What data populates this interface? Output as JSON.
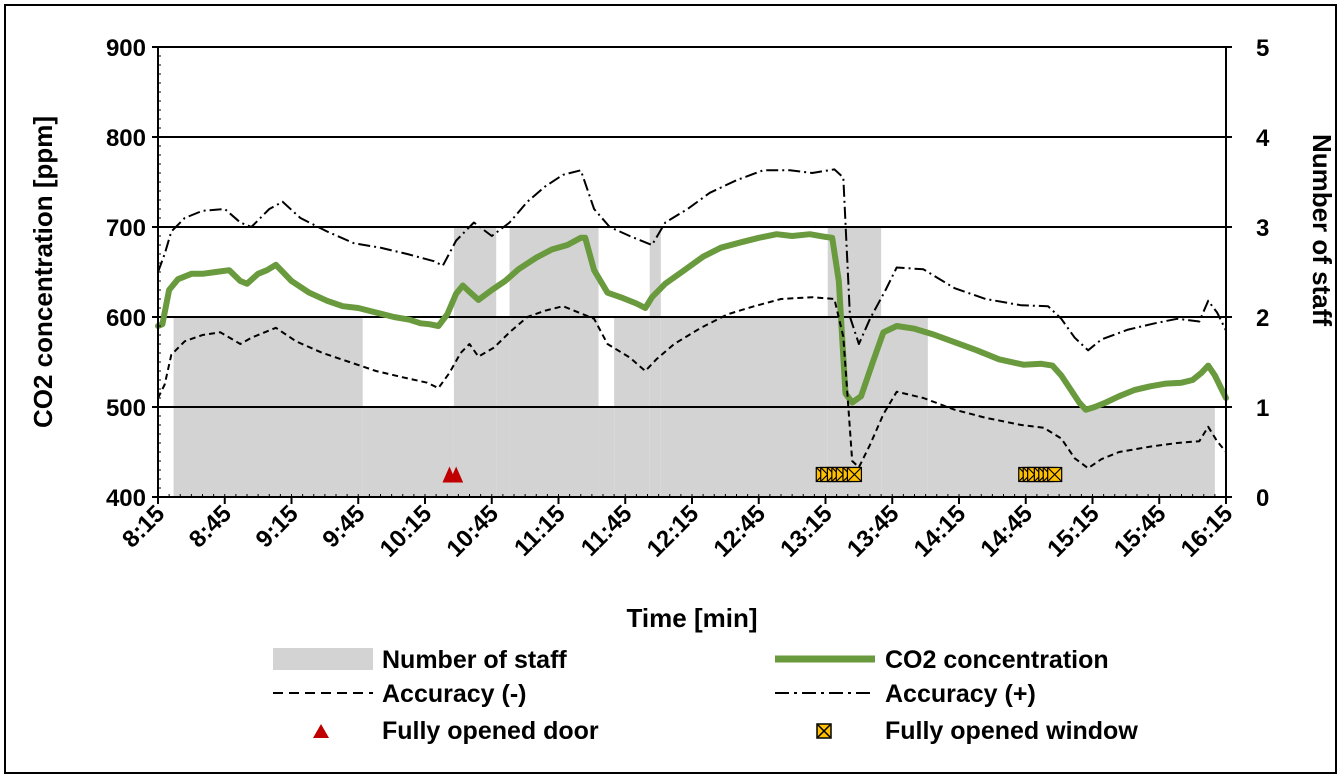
{
  "chart_data": {
    "type": "line",
    "title": "",
    "xlabel": "Time [min]",
    "ylabel_left": "CO2 concentration [ppm]",
    "ylabel_right": "Number of staff",
    "x_ticks": [
      "8:15",
      "8:45",
      "9:15",
      "9:45",
      "10:15",
      "10:45",
      "11:15",
      "11:45",
      "12:15",
      "12:45",
      "13:15",
      "13:45",
      "14:15",
      "14:45",
      "15:15",
      "15:45",
      "16:15"
    ],
    "x_range_min": [
      0,
      480
    ],
    "ylim_left": [
      400,
      900
    ],
    "ylim_right": [
      0,
      5
    ],
    "y_ticks_left": [
      "400",
      "500",
      "600",
      "700",
      "800",
      "900"
    ],
    "y_ticks_right": [
      "0",
      "1",
      "2",
      "3",
      "4",
      "5"
    ],
    "grid": "horizontal",
    "series": [
      {
        "name": "Number of staff",
        "kind": "step-area",
        "axis": "right",
        "color": "#d3d3d3",
        "steps": [
          [
            7,
            2
          ],
          [
            92,
            1
          ],
          [
            133,
            3
          ],
          [
            152,
            2
          ],
          [
            158,
            3
          ],
          [
            198,
            1
          ],
          [
            205,
            2
          ],
          [
            221,
            3
          ],
          [
            226,
            2
          ],
          [
            301,
            3
          ],
          [
            325,
            2
          ],
          [
            346,
            1
          ],
          [
            475,
            1
          ]
        ]
      },
      {
        "name": "CO2 concentration",
        "kind": "line",
        "axis": "left",
        "color": "#6a9a3e",
        "points": [
          [
            0,
            590
          ],
          [
            2,
            592
          ],
          [
            5,
            630
          ],
          [
            9,
            642
          ],
          [
            15,
            648
          ],
          [
            20,
            648
          ],
          [
            26,
            650
          ],
          [
            32,
            652
          ],
          [
            37,
            640
          ],
          [
            40,
            637
          ],
          [
            45,
            648
          ],
          [
            49,
            652
          ],
          [
            53,
            658
          ],
          [
            60,
            640
          ],
          [
            68,
            627
          ],
          [
            76,
            618
          ],
          [
            83,
            612
          ],
          [
            90,
            610
          ],
          [
            98,
            605
          ],
          [
            106,
            600
          ],
          [
            113,
            597
          ],
          [
            118,
            593
          ],
          [
            122,
            592
          ],
          [
            126,
            590
          ],
          [
            130,
            603
          ],
          [
            134,
            626
          ],
          [
            137,
            635
          ],
          [
            140,
            628
          ],
          [
            144,
            619
          ],
          [
            150,
            630
          ],
          [
            156,
            640
          ],
          [
            162,
            653
          ],
          [
            170,
            666
          ],
          [
            177,
            675
          ],
          [
            184,
            680
          ],
          [
            190,
            688
          ],
          [
            192,
            688
          ],
          [
            196,
            652
          ],
          [
            202,
            627
          ],
          [
            209,
            621
          ],
          [
            215,
            615
          ],
          [
            219,
            610
          ],
          [
            222,
            622
          ],
          [
            228,
            637
          ],
          [
            236,
            651
          ],
          [
            245,
            667
          ],
          [
            253,
            677
          ],
          [
            262,
            683
          ],
          [
            270,
            688
          ],
          [
            278,
            692
          ],
          [
            285,
            690
          ],
          [
            293,
            692
          ],
          [
            300,
            689
          ],
          [
            303,
            688
          ],
          [
            306,
            640
          ],
          [
            309,
            515
          ],
          [
            312,
            505
          ],
          [
            316,
            512
          ],
          [
            321,
            548
          ],
          [
            326,
            583
          ],
          [
            332,
            590
          ],
          [
            340,
            587
          ],
          [
            348,
            581
          ],
          [
            358,
            572
          ],
          [
            368,
            563
          ],
          [
            378,
            553
          ],
          [
            389,
            547
          ],
          [
            397,
            548
          ],
          [
            402,
            546
          ],
          [
            406,
            535
          ],
          [
            410,
            520
          ],
          [
            414,
            505
          ],
          [
            417,
            497
          ],
          [
            421,
            500
          ],
          [
            426,
            505
          ],
          [
            432,
            512
          ],
          [
            439,
            519
          ],
          [
            446,
            523
          ],
          [
            453,
            526
          ],
          [
            460,
            527
          ],
          [
            465,
            530
          ],
          [
            469,
            538
          ],
          [
            472,
            546
          ],
          [
            475,
            535
          ],
          [
            478,
            520
          ],
          [
            480,
            510
          ]
        ]
      },
      {
        "name": "Accuracy (-)",
        "kind": "line",
        "axis": "left",
        "color": "#000000",
        "dash": "dashed",
        "points": [
          [
            0,
            510
          ],
          [
            3,
            525
          ],
          [
            6,
            558
          ],
          [
            12,
            573
          ],
          [
            20,
            580
          ],
          [
            28,
            583
          ],
          [
            37,
            570
          ],
          [
            42,
            577
          ],
          [
            53,
            588
          ],
          [
            62,
            573
          ],
          [
            74,
            560
          ],
          [
            86,
            550
          ],
          [
            98,
            540
          ],
          [
            110,
            533
          ],
          [
            121,
            527
          ],
          [
            126,
            521
          ],
          [
            131,
            538
          ],
          [
            136,
            560
          ],
          [
            140,
            570
          ],
          [
            144,
            556
          ],
          [
            151,
            566
          ],
          [
            158,
            583
          ],
          [
            166,
            600
          ],
          [
            174,
            607
          ],
          [
            182,
            612
          ],
          [
            196,
            598
          ],
          [
            202,
            570
          ],
          [
            212,
            555
          ],
          [
            219,
            540
          ],
          [
            224,
            553
          ],
          [
            232,
            570
          ],
          [
            244,
            588
          ],
          [
            256,
            603
          ],
          [
            268,
            612
          ],
          [
            280,
            620
          ],
          [
            294,
            622
          ],
          [
            304,
            620
          ],
          [
            308,
            578
          ],
          [
            312,
            440
          ],
          [
            315,
            433
          ],
          [
            320,
            458
          ],
          [
            326,
            492
          ],
          [
            332,
            517
          ],
          [
            344,
            510
          ],
          [
            358,
            497
          ],
          [
            372,
            488
          ],
          [
            388,
            480
          ],
          [
            398,
            477
          ],
          [
            406,
            465
          ],
          [
            412,
            443
          ],
          [
            418,
            432
          ],
          [
            424,
            442
          ],
          [
            432,
            450
          ],
          [
            446,
            456
          ],
          [
            458,
            460
          ],
          [
            468,
            462
          ],
          [
            472,
            478
          ],
          [
            476,
            462
          ],
          [
            480,
            450
          ]
        ]
      },
      {
        "name": "Accuracy (+)",
        "kind": "line",
        "axis": "left",
        "color": "#000000",
        "dash": "dash-dot",
        "points": [
          [
            0,
            650
          ],
          [
            3,
            670
          ],
          [
            6,
            695
          ],
          [
            12,
            710
          ],
          [
            20,
            718
          ],
          [
            30,
            720
          ],
          [
            37,
            705
          ],
          [
            42,
            700
          ],
          [
            50,
            720
          ],
          [
            56,
            728
          ],
          [
            64,
            710
          ],
          [
            76,
            695
          ],
          [
            88,
            682
          ],
          [
            100,
            677
          ],
          [
            112,
            670
          ],
          [
            124,
            662
          ],
          [
            128,
            657
          ],
          [
            134,
            685
          ],
          [
            142,
            705
          ],
          [
            150,
            690
          ],
          [
            158,
            705
          ],
          [
            166,
            728
          ],
          [
            174,
            745
          ],
          [
            182,
            758
          ],
          [
            190,
            763
          ],
          [
            196,
            720
          ],
          [
            203,
            700
          ],
          [
            212,
            690
          ],
          [
            222,
            680
          ],
          [
            228,
            705
          ],
          [
            238,
            720
          ],
          [
            248,
            738
          ],
          [
            260,
            752
          ],
          [
            272,
            763
          ],
          [
            284,
            763
          ],
          [
            294,
            760
          ],
          [
            304,
            764
          ],
          [
            308,
            755
          ],
          [
            311,
            600
          ],
          [
            315,
            570
          ],
          [
            320,
            598
          ],
          [
            327,
            630
          ],
          [
            332,
            655
          ],
          [
            344,
            653
          ],
          [
            358,
            632
          ],
          [
            372,
            620
          ],
          [
            388,
            613
          ],
          [
            400,
            612
          ],
          [
            406,
            598
          ],
          [
            412,
            577
          ],
          [
            418,
            563
          ],
          [
            424,
            575
          ],
          [
            436,
            586
          ],
          [
            448,
            593
          ],
          [
            458,
            598
          ],
          [
            468,
            595
          ],
          [
            472,
            618
          ],
          [
            476,
            605
          ],
          [
            480,
            585
          ]
        ]
      },
      {
        "name": "Fully opened door",
        "kind": "marker",
        "marker": "triangle",
        "color": "#c00000",
        "x": [
          131,
          134
        ],
        "y_left": 425
      },
      {
        "name": "Fully opened window",
        "kind": "marker",
        "marker": "x-square",
        "color": "#ffc000",
        "x": [
          299,
          301,
          304,
          306,
          308,
          311,
          313,
          390,
          392,
          394,
          397,
          399,
          401,
          403
        ],
        "y_left": 425
      }
    ],
    "legend": {
      "placement": "bottom",
      "items": [
        {
          "label": "Number of staff",
          "symbol": "area"
        },
        {
          "label": "CO2 concentration",
          "symbol": "line"
        },
        {
          "label": "Accuracy (-)",
          "symbol": "dashed"
        },
        {
          "label": "Accuracy (+)",
          "symbol": "dash-dot"
        },
        {
          "label": "Fully opened door",
          "symbol": "triangle"
        },
        {
          "label": "Fully opened window",
          "symbol": "x-square"
        }
      ]
    }
  }
}
